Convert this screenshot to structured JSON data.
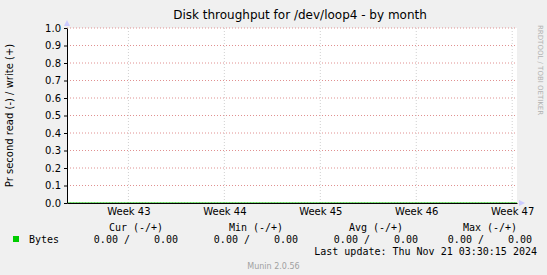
{
  "chart_data": {
    "type": "line",
    "title": "Disk throughput for /dev/loop4 - by month",
    "y_label": "Pr second read (-) / write (+)",
    "watermark": "RRDTOOL / TOBI OETIKER",
    "x": [
      42.36,
      47.05
    ],
    "xlim": [
      42.36,
      47.05
    ],
    "xticks": [
      {
        "value": 43,
        "label": "Week 43"
      },
      {
        "value": 44,
        "label": "Week 44"
      },
      {
        "value": 45,
        "label": "Week 45"
      },
      {
        "value": 46,
        "label": "Week 46"
      },
      {
        "value": 47,
        "label": "Week 47"
      }
    ],
    "ylim": [
      0,
      1
    ],
    "yticks": [
      {
        "value": 0,
        "label": "0.0"
      },
      {
        "value": 0.1,
        "label": "0.1"
      },
      {
        "value": 0.2,
        "label": "0.2"
      },
      {
        "value": 0.3,
        "label": "0.3"
      },
      {
        "value": 0.4,
        "label": "0.4"
      },
      {
        "value": 0.5,
        "label": "0.5"
      },
      {
        "value": 0.6,
        "label": "0.6"
      },
      {
        "value": 0.7,
        "label": "0.7"
      },
      {
        "value": 0.8,
        "label": "0.8"
      },
      {
        "value": 0.9,
        "label": "0.9"
      },
      {
        "value": 1,
        "label": "1.0"
      }
    ],
    "grid": true,
    "stats_columns": [
      "Cur (-/+)",
      "Min (-/+)",
      "Avg (-/+)",
      "Max (-/+)"
    ],
    "series": [
      {
        "name": "Bytes",
        "color": "#00cc00",
        "values": [
          0,
          0
        ],
        "stats": [
          "0.00 /    0.00",
          "0.00 /    0.00",
          "0.00 /    0.00",
          "0.00 /    0.00"
        ]
      }
    ],
    "last_update": "Last update: Thu Nov 21 03:30:15 2024",
    "footer": "Munin 2.0.56"
  }
}
